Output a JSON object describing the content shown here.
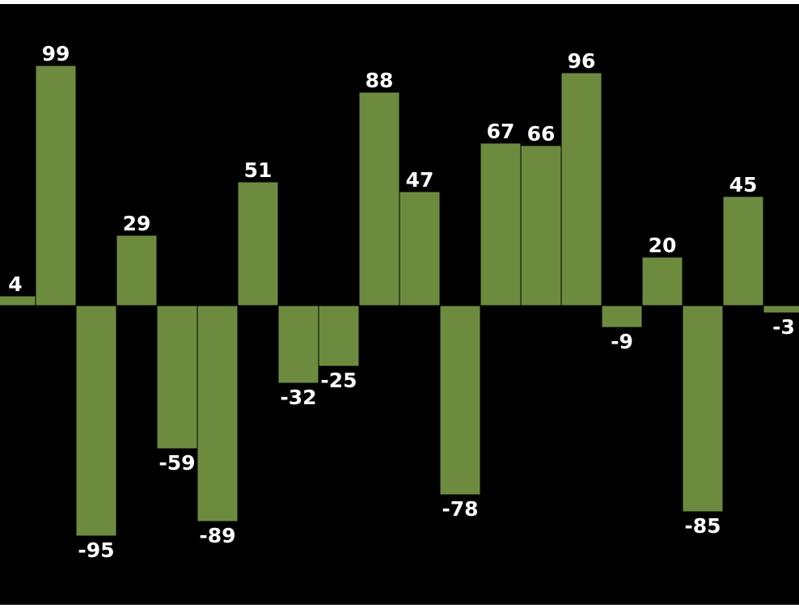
{
  "chart_data": {
    "type": "bar",
    "values": [
      4,
      99,
      -95,
      29,
      -59,
      -89,
      51,
      -32,
      -25,
      88,
      47,
      -78,
      67,
      66,
      96,
      -9,
      20,
      -85,
      45,
      -3
    ],
    "title": "",
    "xlabel": "",
    "ylabel": "",
    "ylim": [
      -100,
      100
    ],
    "grid": false,
    "legend": "none",
    "data_labels": true,
    "colors": {
      "background": "#000000",
      "bar_fill": "#6d8b3f",
      "bar_stroke": "#000000",
      "label": "#ffffff"
    }
  }
}
